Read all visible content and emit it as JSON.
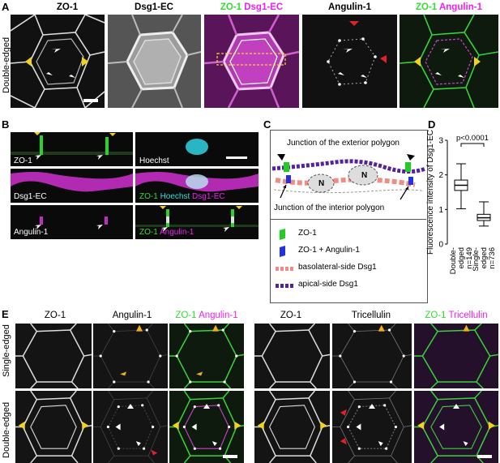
{
  "panelA": {
    "letter": "A",
    "row_label": "Double-edged",
    "titles": {
      "zo1": "ZO-1",
      "dsg1": "Dsg1-EC",
      "merge1_a": "ZO-1",
      "merge1_b": "Dsg1-EC",
      "angulin": "Angulin-1",
      "merge2_a": "ZO-1",
      "merge2_b": "Angulin-1"
    }
  },
  "panelB": {
    "letter": "B",
    "labels": {
      "zo1": "ZO-1",
      "hoechst": "Hoechst",
      "dsg1": "Dsg1-EC",
      "merge1_a": "ZO-1",
      "merge1_b": "Hoechst",
      "merge1_c": "Dsg1-EC",
      "angulin": "Angulin-1",
      "merge2_a": "ZO-1",
      "merge2_b": "Angulin-1"
    }
  },
  "panelC": {
    "letter": "C",
    "exterior": "Junction of the exterior polygon",
    "interior": "Junction of the interior polygon",
    "nucleus": "N",
    "legend": [
      {
        "label": "ZO-1",
        "color": "#22cc22"
      },
      {
        "label": "ZO-1 + Angulin-1",
        "color": "#2233dd"
      },
      {
        "label": "basolateral-side Dsg1",
        "color": "#f08c84"
      },
      {
        "label": "apical-side Dsg1",
        "color": "#55229a"
      }
    ]
  },
  "panelD": {
    "letter": "D",
    "chart_data": {
      "type": "box",
      "ylabel": "Fluorescence intensity of Dsg1-EC",
      "ylim": [
        0,
        3
      ],
      "yticks": [
        "0",
        "1",
        "2",
        "3"
      ],
      "significance": "p<0.0001",
      "categories": [
        {
          "name": "Double-edged",
          "n": "n=149",
          "whisker_low": 1.02,
          "q1": 1.55,
          "median": 1.7,
          "q3": 1.85,
          "whisker_high": 2.32
        },
        {
          "name": "Single-edged",
          "n": "n=736",
          "whisker_low": 0.52,
          "q1": 0.68,
          "median": 0.76,
          "q3": 0.86,
          "whisker_high": 1.22
        }
      ]
    }
  },
  "panelE": {
    "letter": "E",
    "row_labels": [
      "Single-edged",
      "Double-edged"
    ],
    "titles": {
      "zo1_l": "ZO-1",
      "angulin": "Angulin-1",
      "merge_l_a": "ZO-1",
      "merge_l_b": "Angulin-1",
      "zo1_r": "ZO-1",
      "tric": "Tricellulin",
      "merge_r_a": "ZO-1",
      "merge_r_b": "Tricellulin"
    }
  }
}
